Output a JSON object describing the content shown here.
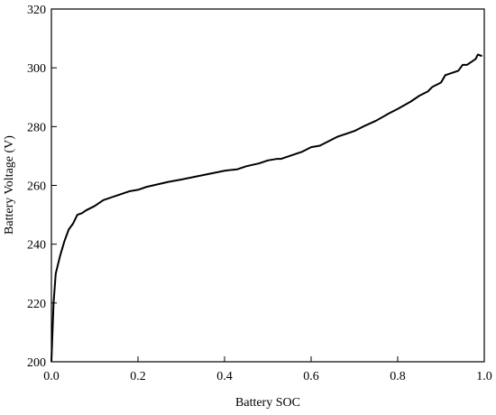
{
  "chart_data": {
    "type": "line",
    "x_label": "Battery SOC",
    "y_label": "Battery Voltage (V)",
    "xlim": [
      0,
      1
    ],
    "ylim": [
      200,
      320
    ],
    "xticks": [
      {
        "value": 0,
        "label": "0.0"
      },
      0.2,
      0.4,
      0.6,
      0.8,
      {
        "value": 1,
        "label": "1.0"
      }
    ],
    "yticks": [
      200,
      220,
      240,
      260,
      280,
      300,
      320
    ],
    "grid": false,
    "series": [
      {
        "color": "#000000",
        "x": [
          0,
          0.005,
          0.01,
          0.02,
          0.03,
          0.04,
          0.05,
          0.06,
          0.07,
          0.08,
          0.1,
          0.12,
          0.15,
          0.18,
          0.2,
          0.22,
          0.27,
          0.3,
          0.35,
          0.4,
          0.43,
          0.45,
          0.48,
          0.5,
          0.52,
          0.53,
          0.55,
          0.58,
          0.6,
          0.62,
          0.64,
          0.66,
          0.7,
          0.72,
          0.75,
          0.78,
          0.8,
          0.83,
          0.85,
          0.87,
          0.88,
          0.9,
          0.91,
          0.93,
          0.94,
          0.95,
          0.96,
          0.97,
          0.98,
          0.985,
          0.995
        ],
        "values": [
          200,
          220,
          230,
          236,
          241,
          245,
          247,
          250,
          250.5,
          251.5,
          253,
          255,
          256.5,
          258,
          258.5,
          259.5,
          261.2,
          262,
          263.5,
          265,
          265.5,
          266.5,
          267.5,
          268.5,
          269,
          269,
          270,
          271.5,
          273,
          273.5,
          275,
          276.5,
          278.5,
          280,
          282,
          284.5,
          286,
          288.5,
          290.5,
          292,
          293.5,
          295,
          297.5,
          298.5,
          299,
          301,
          301,
          302,
          303,
          304.5,
          304
        ]
      }
    ]
  }
}
